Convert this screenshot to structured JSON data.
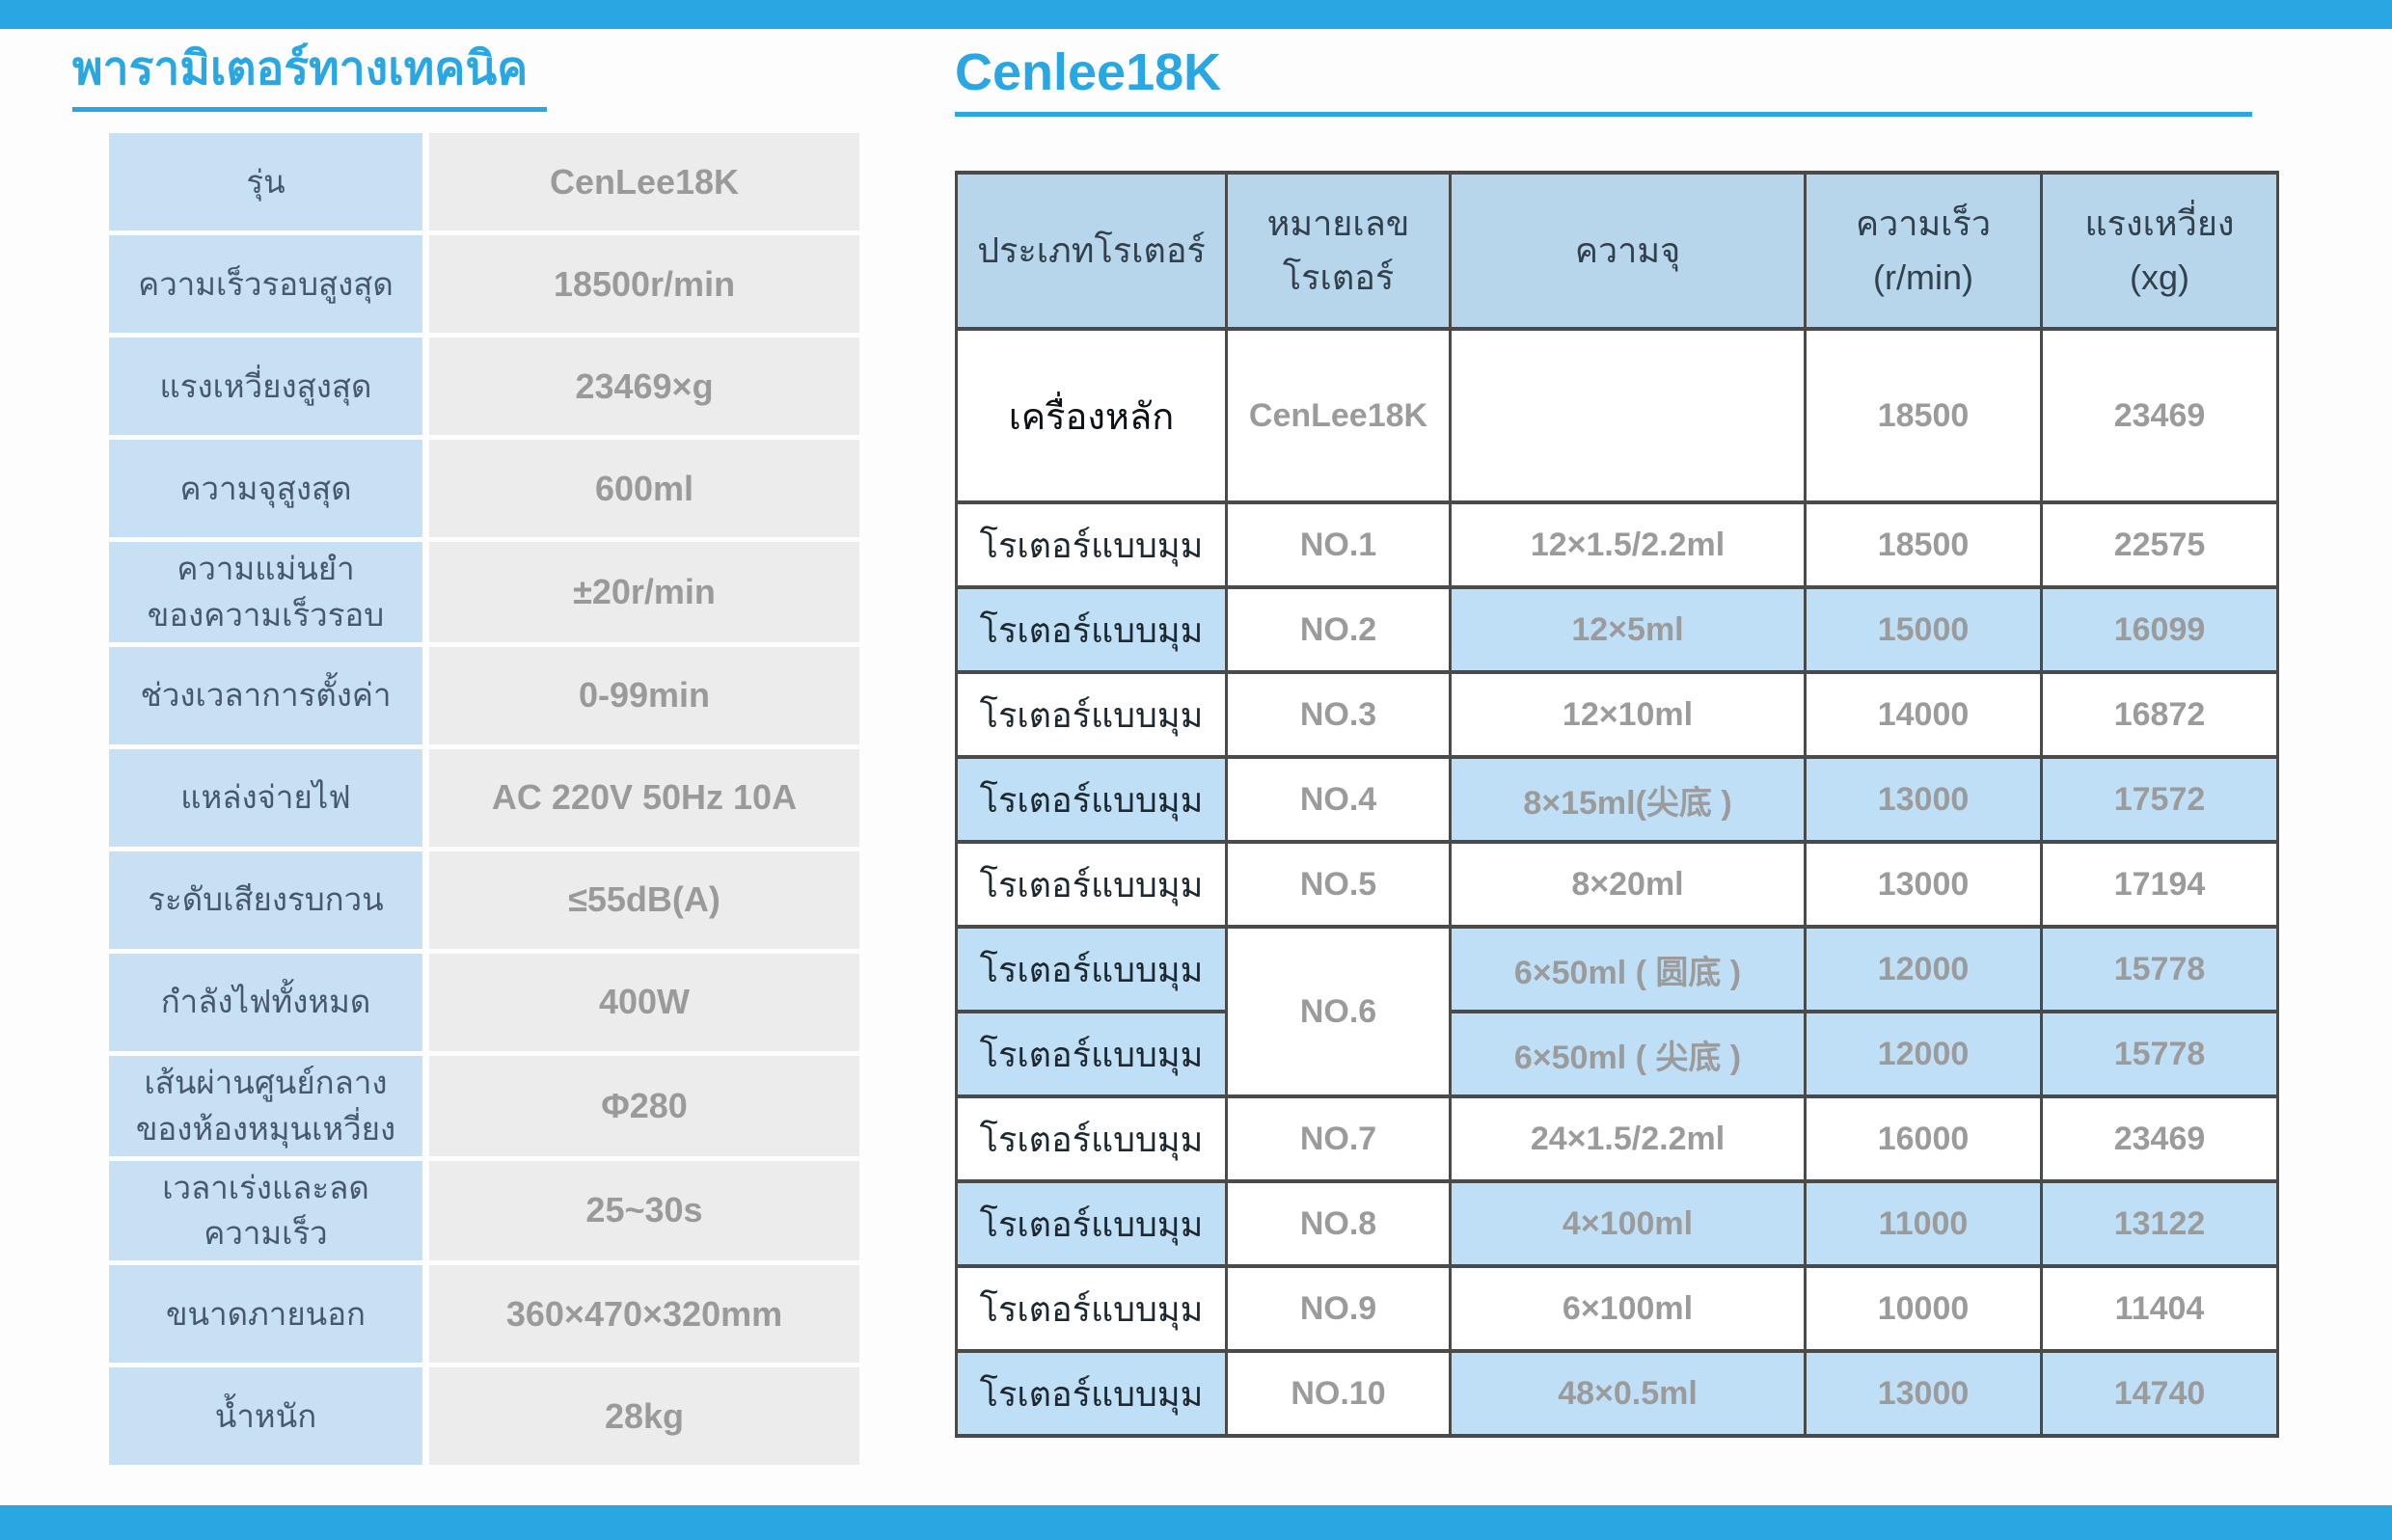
{
  "colors": {
    "accent": "#29A7E2",
    "label_cell_bg": "#C7E0F4",
    "value_cell_bg": "#ECECEC",
    "table_header_bg": "#B7D6EC",
    "highlight_row_bg": "#BEDFF5",
    "table_border": "#4A4A4A",
    "label_text": "#47586A",
    "value_text": "#9A9A9B",
    "dark_text": "#1E2830"
  },
  "left_panel": {
    "title": "พารามิเตอร์ทางเทคนิค",
    "rows": [
      {
        "label": "รุ่น",
        "value": "CenLee18K"
      },
      {
        "label": "ความเร็วรอบสูงสุด",
        "value": "18500r/min"
      },
      {
        "label": "แรงเหวี่ยงสูงสุด",
        "value": "23469×g"
      },
      {
        "label": "ความจุสูงสุด",
        "value": "600ml"
      },
      {
        "label": "ความแม่นยำ\nของความเร็วรอบ",
        "value": "±20r/min"
      },
      {
        "label": "ช่วงเวลาการตั้งค่า",
        "value": "0-99min"
      },
      {
        "label": "แหล่งจ่ายไฟ",
        "value": "AC 220V 50Hz 10A"
      },
      {
        "label": "ระดับเสียงรบกวน",
        "value": "≤55dB(A)"
      },
      {
        "label": "กำลังไฟทั้งหมด",
        "value": "400W"
      },
      {
        "label": "เส้นผ่านศูนย์กลาง\nของห้องหมุนเหวี่ยง",
        "value": "Φ280"
      },
      {
        "label": "เวลาเร่งและลดความเร็ว",
        "value": "25~30s"
      },
      {
        "label": "ขนาดภายนอก",
        "value": "360×470×320mm"
      },
      {
        "label": "น้ำหนัก",
        "value": "28kg"
      }
    ]
  },
  "right_panel": {
    "title": "Cenlee18K",
    "table": {
      "headers": [
        "ประเภทโรเตอร์",
        "หมายเลข\nโรเตอร์",
        "ความจุ",
        "ความเร็ว\n(r/min)",
        "แรงเหวี่ยง\n(xg)"
      ],
      "rows": [
        {
          "type": "เครื่องหลัก",
          "no": "CenLee18K",
          "capacity": "",
          "speed": "18500",
          "force": "23469",
          "highlight": false,
          "main": true
        },
        {
          "type": "โรเตอร์แบบมุม",
          "no": "NO.1",
          "capacity": "12×1.5/2.2ml",
          "speed": "18500",
          "force": "22575",
          "highlight": false
        },
        {
          "type": "โรเตอร์แบบมุม",
          "no": "NO.2",
          "capacity": "12×5ml",
          "speed": "15000",
          "force": "16099",
          "highlight": true
        },
        {
          "type": "โรเตอร์แบบมุม",
          "no": "NO.3",
          "capacity": "12×10ml",
          "speed": "14000",
          "force": "16872",
          "highlight": false
        },
        {
          "type": "โรเตอร์แบบมุม",
          "no": "NO.4",
          "capacity": "8×15ml(尖底 )",
          "speed": "13000",
          "force": "17572",
          "highlight": true
        },
        {
          "type": "โรเตอร์แบบมุม",
          "no": "NO.5",
          "capacity": "8×20ml",
          "speed": "13000",
          "force": "17194",
          "highlight": false
        },
        {
          "type": "โรเตอร์แบบมุม",
          "no": "NO.6",
          "no_rowspan": 2,
          "capacity": "6×50ml ( 圆底 )",
          "speed": "12000",
          "force": "15778",
          "highlight": true
        },
        {
          "type": "โรเตอร์แบบมุม",
          "no": null,
          "capacity": "6×50ml ( 尖底 )",
          "speed": "12000",
          "force": "15778",
          "highlight": true
        },
        {
          "type": "โรเตอร์แบบมุม",
          "no": "NO.7",
          "capacity": "24×1.5/2.2ml",
          "speed": "16000",
          "force": "23469",
          "highlight": false
        },
        {
          "type": "โรเตอร์แบบมุม",
          "no": "NO.8",
          "capacity": "4×100ml",
          "speed": "11000",
          "force": "13122",
          "highlight": true
        },
        {
          "type": "โรเตอร์แบบมุม",
          "no": "NO.9",
          "capacity": "6×100ml",
          "speed": "10000",
          "force": "11404",
          "highlight": false
        },
        {
          "type": "โรเตอร์แบบมุม",
          "no": "NO.10",
          "capacity": "48×0.5ml",
          "speed": "13000",
          "force": "14740",
          "highlight": true
        }
      ]
    }
  }
}
